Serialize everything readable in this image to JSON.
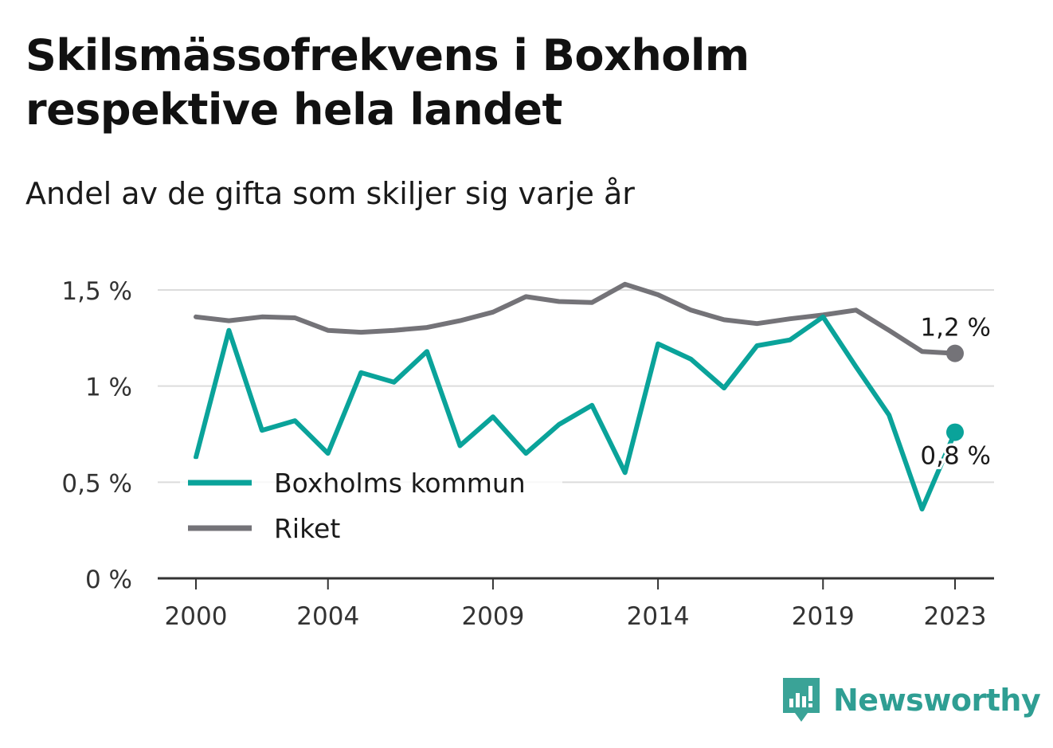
{
  "header": {
    "title_line1": "Skilsmässofrekvens i Boxholm",
    "title_line2": "respektive hela landet",
    "subtitle": "Andel av de gifta som skiljer sig varje år"
  },
  "brand": {
    "name": "Newsworthy",
    "icon": "bar-chart-speech-bubble-icon",
    "color": "#3aa397"
  },
  "chart_data": {
    "type": "line",
    "title": "Skilsmässofrekvens i Boxholm respektive hela landet",
    "subtitle": "Andel av de gifta som skiljer sig varje år",
    "x": [
      2000,
      2001,
      2002,
      2003,
      2004,
      2005,
      2006,
      2007,
      2008,
      2009,
      2010,
      2011,
      2012,
      2013,
      2014,
      2015,
      2016,
      2017,
      2018,
      2019,
      2020,
      2021,
      2022,
      2023
    ],
    "x_ticks": [
      2000,
      2004,
      2009,
      2014,
      2019,
      2023
    ],
    "x_tick_labels": [
      "2000",
      "2004",
      "2009",
      "2014",
      "2019",
      "2023"
    ],
    "ylim": [
      0,
      1.5
    ],
    "y_ticks": [
      0,
      0.5,
      1,
      1.5
    ],
    "y_tick_labels": [
      "0 %",
      "0,5 %",
      "1 %",
      "1,5 %"
    ],
    "grid": true,
    "legend_position": "bottom-left",
    "series": [
      {
        "name": "Boxholms kommun",
        "color": "#0aa39a",
        "values": [
          0.63,
          1.29,
          0.77,
          0.82,
          0.65,
          1.07,
          1.02,
          1.18,
          0.69,
          0.84,
          0.65,
          0.8,
          0.9,
          0.55,
          1.22,
          1.14,
          0.99,
          1.21,
          1.24,
          1.36,
          1.1,
          0.85,
          0.36,
          0.76
        ],
        "end_label": "0,8 %"
      },
      {
        "name": "Riket",
        "color": "#747378",
        "values": [
          1.36,
          1.34,
          1.36,
          1.355,
          1.29,
          1.28,
          1.29,
          1.305,
          1.34,
          1.385,
          1.465,
          1.44,
          1.435,
          1.53,
          1.475,
          1.395,
          1.345,
          1.325,
          1.35,
          1.37,
          1.395,
          1.29,
          1.18,
          1.17
        ],
        "end_label": "1,2 %"
      }
    ]
  }
}
